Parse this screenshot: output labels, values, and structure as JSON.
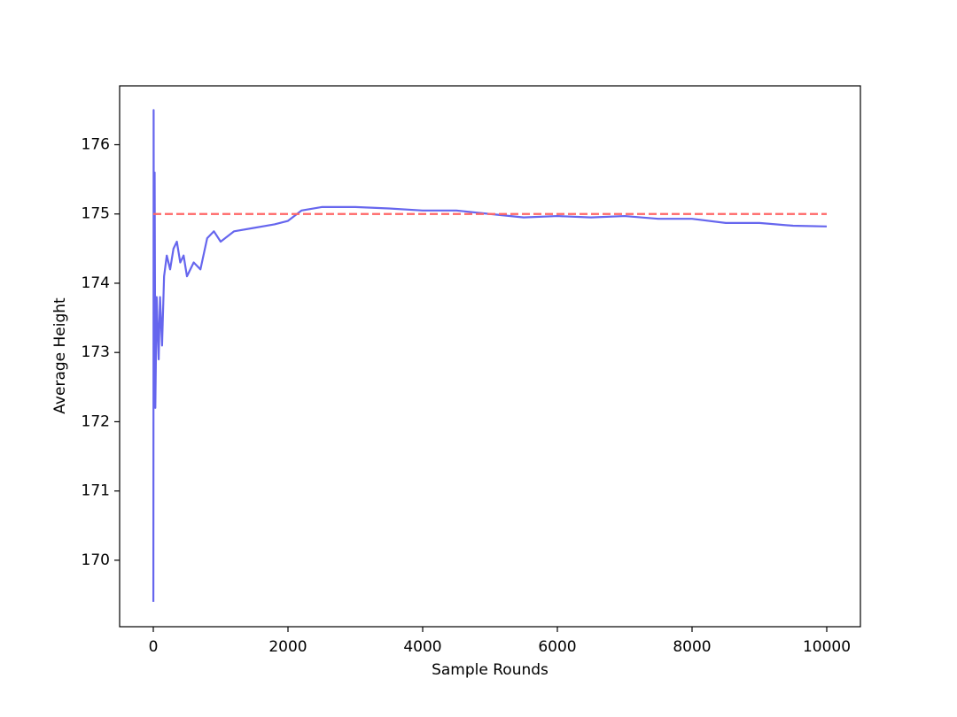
{
  "chart_data": {
    "type": "line",
    "xlabel": "Sample Rounds",
    "ylabel": "Average Height",
    "xlim": [
      -500,
      10500
    ],
    "ylim": [
      169.04,
      176.85
    ],
    "xticks": [
      0,
      2000,
      4000,
      6000,
      8000,
      10000
    ],
    "yticks": [
      170,
      171,
      172,
      173,
      174,
      175,
      176
    ],
    "series": [
      {
        "color": "#6666ee",
        "linestyle": "solid",
        "x": [
          1,
          5,
          10,
          20,
          30,
          50,
          80,
          100,
          130,
          160,
          200,
          250,
          300,
          350,
          400,
          450,
          500,
          600,
          700,
          800,
          900,
          1000,
          1200,
          1500,
          1800,
          2000,
          2200,
          2500,
          3000,
          3500,
          4000,
          4500,
          5000,
          5500,
          6000,
          6500,
          7000,
          7500,
          8000,
          8500,
          9000,
          9500,
          10000
        ],
        "values": [
          169.4,
          176.5,
          172.5,
          175.6,
          172.2,
          173.8,
          172.9,
          173.8,
          173.1,
          174.1,
          174.4,
          174.2,
          174.5,
          174.6,
          174.3,
          174.4,
          174.1,
          174.3,
          174.2,
          174.65,
          174.75,
          174.6,
          174.75,
          174.8,
          174.85,
          174.9,
          175.05,
          175.1,
          175.1,
          175.08,
          175.05,
          175.05,
          175.0,
          174.95,
          174.97,
          174.95,
          174.97,
          174.93,
          174.93,
          174.87,
          174.87,
          174.83,
          174.82
        ]
      },
      {
        "color": "#ff6666",
        "linestyle": "dashed",
        "x": [
          0,
          10000
        ],
        "values": [
          175,
          175
        ]
      }
    ]
  }
}
